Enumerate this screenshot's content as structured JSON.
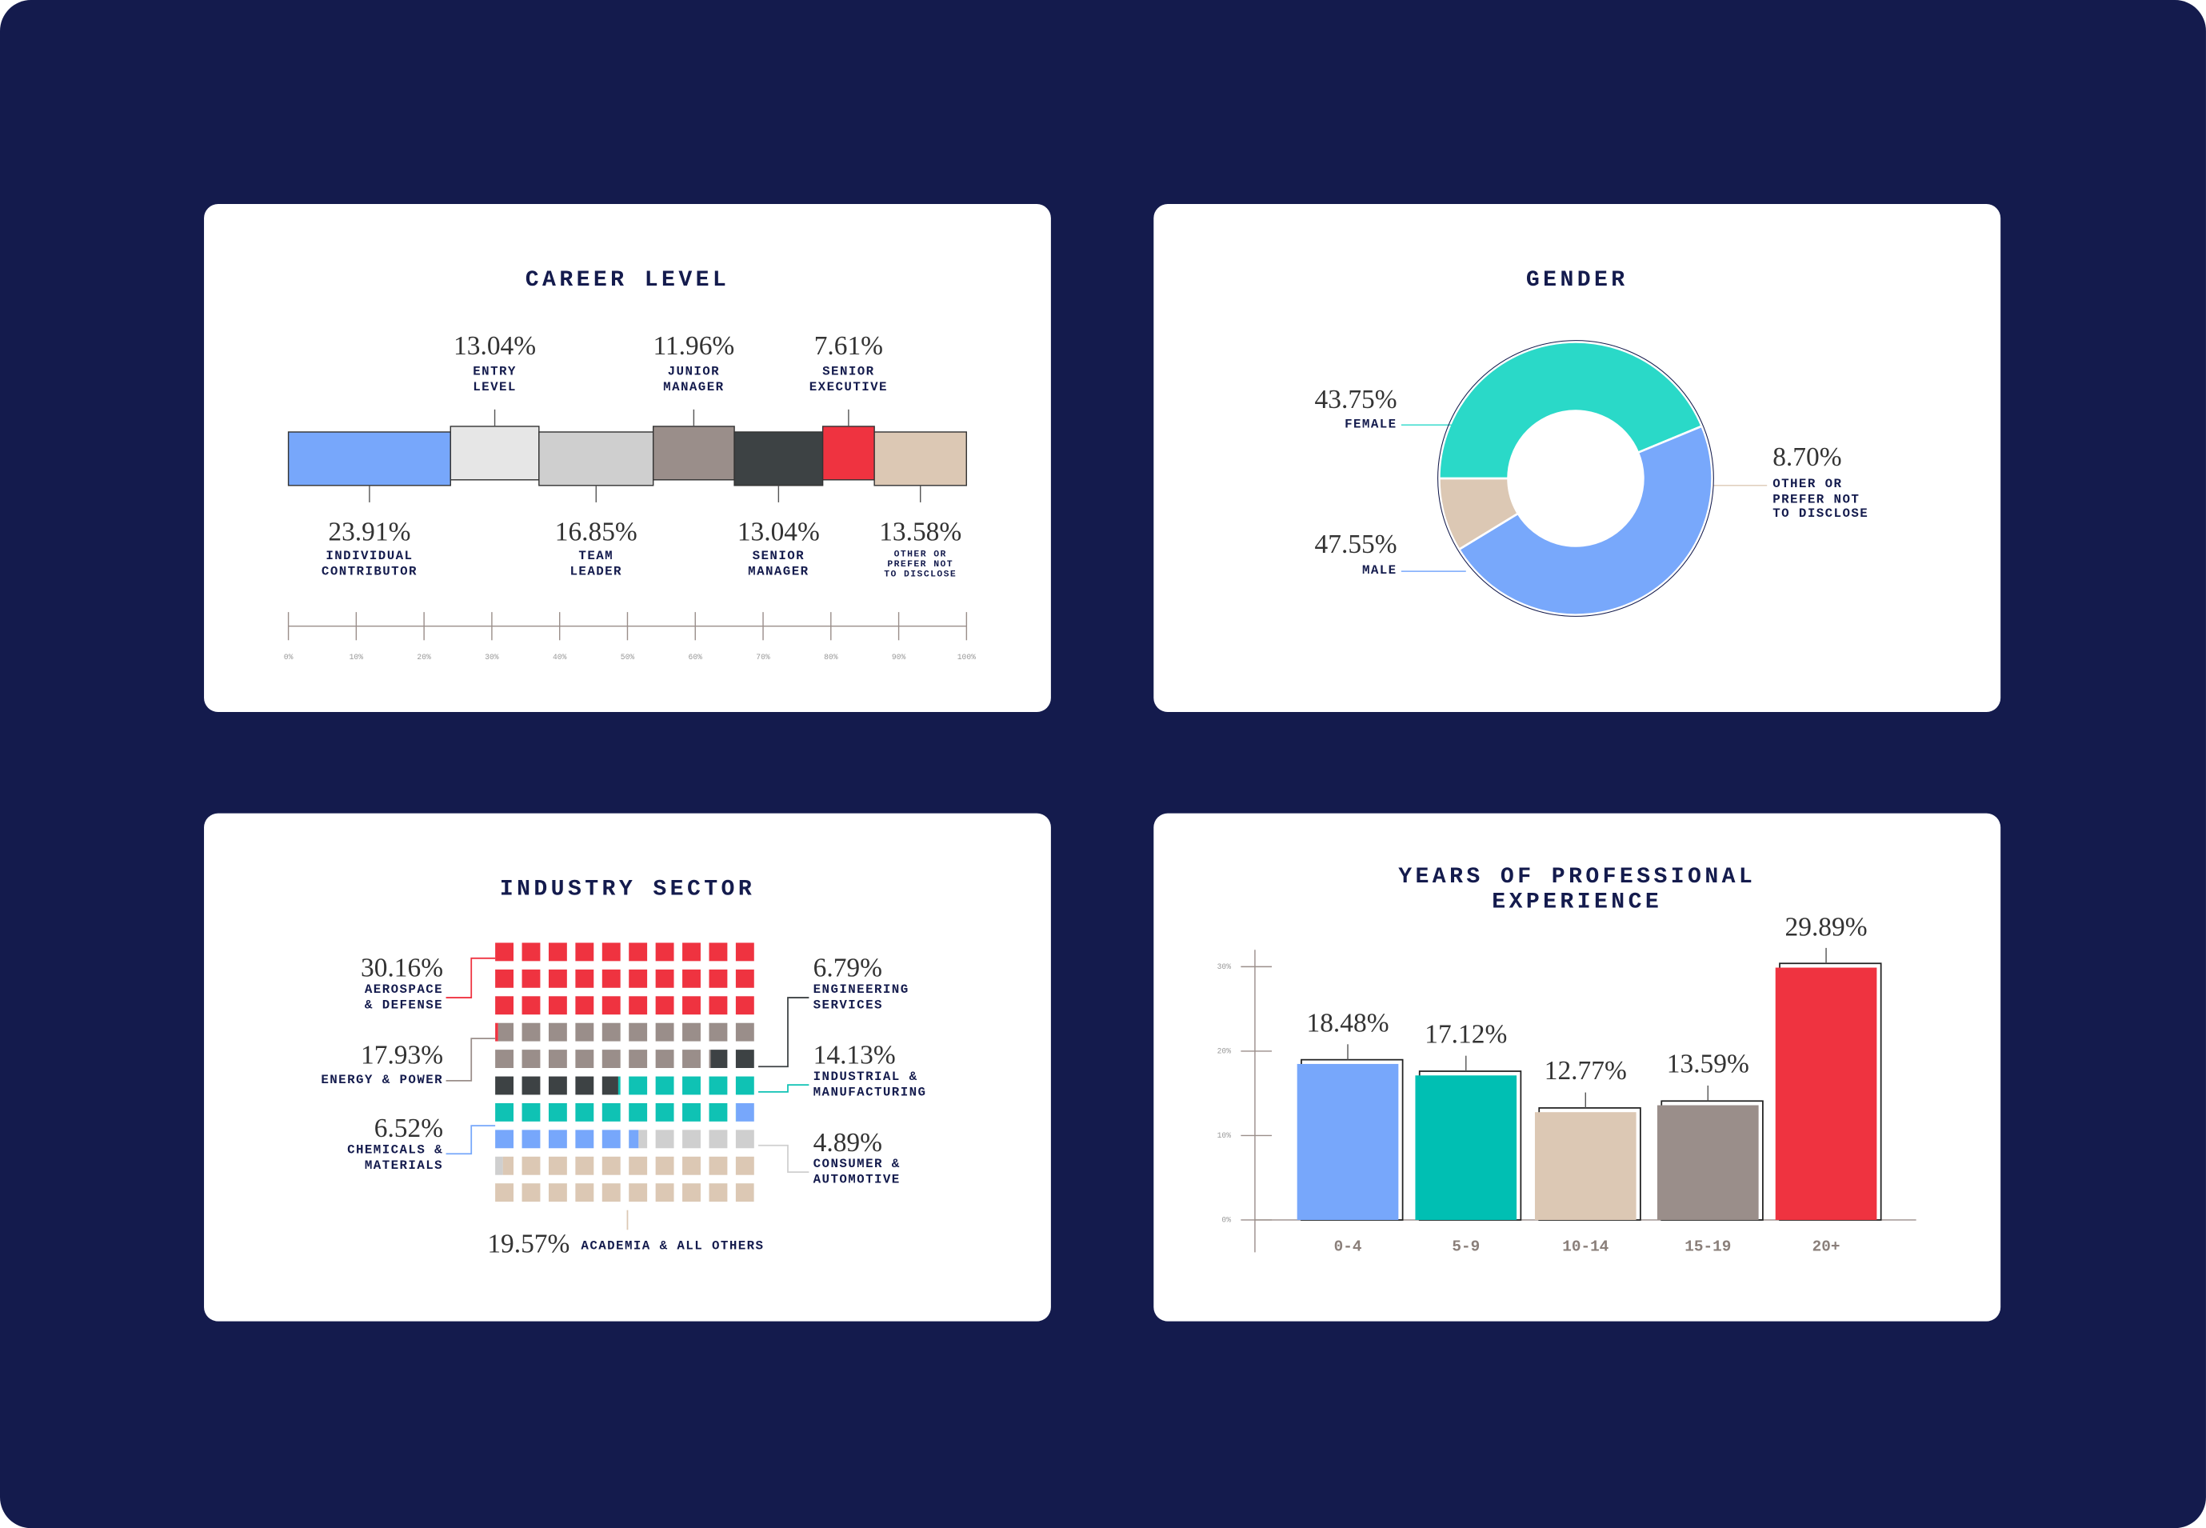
{
  "chart_data": [
    {
      "type": "stacked_bar",
      "title": "CAREER LEVEL",
      "categories": [
        "INDIVIDUAL\nCONTRIBUTOR",
        "ENTRY\nLEVEL",
        "TEAM\nLEADER",
        "JUNIOR\nMANAGER",
        "SENIOR\nMANAGER",
        "SENIOR\nEXECUTIVE",
        "OTHER OR\nPREFER NOT\nTO DISCLOSE"
      ],
      "values": [
        23.91,
        13.04,
        16.85,
        11.96,
        13.04,
        7.61,
        13.58
      ],
      "value_labels": [
        "23.91%",
        "13.04%",
        "16.85%",
        "11.96%",
        "13.04%",
        "7.61%",
        "13.58%"
      ],
      "colors": [
        "#77a7fb",
        "#e6e6e6",
        "#cfcfcf",
        "#9a8e8a",
        "#3d4244",
        "#ef3340",
        "#dcc8b4"
      ],
      "xlim": [
        0,
        100
      ],
      "xticks": [
        {
          "value": 0,
          "label": "0%"
        },
        {
          "value": 10,
          "label": "10%"
        },
        {
          "value": 20,
          "label": "20%"
        },
        {
          "value": 30,
          "label": "30%"
        },
        {
          "value": 40,
          "label": "40%"
        },
        {
          "value": 50,
          "label": "50%"
        },
        {
          "value": 60,
          "label": "60%"
        },
        {
          "value": 70,
          "label": "70%"
        },
        {
          "value": 80,
          "label": "80%"
        },
        {
          "value": 90,
          "label": "90%"
        },
        {
          "value": 100,
          "label": "100%"
        }
      ]
    },
    {
      "type": "donut",
      "title": "GENDER",
      "categories": [
        "FEMALE",
        "MALE",
        "OTHER OR\nPREFER NOT\nTO DISCLOSE"
      ],
      "values": [
        43.75,
        47.55,
        8.7
      ],
      "value_labels": [
        "43.75%",
        "47.55%",
        "8.70%"
      ],
      "colors": [
        "#2ad9c8",
        "#78a8fb",
        "#dcc8b4"
      ]
    },
    {
      "type": "waffle",
      "title": "INDUSTRY SECTOR",
      "categories": [
        "AEROSPACE\n& DEFENSE",
        "ENERGY & POWER",
        "ENGINEERING\nSERVICES",
        "INDUSTRIAL &\nMANUFACTURING",
        "CHEMICALS &\nMATERIALS",
        "CONSUMER &\nAUTOMOTIVE",
        "ACADEMIA & ALL OTHERS"
      ],
      "values": [
        30.16,
        17.93,
        6.79,
        14.13,
        6.52,
        4.89,
        19.57
      ],
      "value_labels": [
        "30.16%",
        "17.93%",
        "6.79%",
        "14.13%",
        "6.52%",
        "4.89%",
        "19.57%"
      ],
      "colors": [
        "#ef3340",
        "#9a8e8a",
        "#3d4244",
        "#0fc2b4",
        "#77a7fb",
        "#cfcfcf",
        "#dcc8b4"
      ]
    },
    {
      "type": "bar",
      "title": "YEARS OF PROFESSIONAL EXPERIENCE",
      "categories": [
        "0-4",
        "5-9",
        "10-14",
        "15-19",
        "20+"
      ],
      "values": [
        18.48,
        17.12,
        12.77,
        13.59,
        29.89
      ],
      "value_labels": [
        "18.48%",
        "17.12%",
        "12.77%",
        "13.59%",
        "29.89%"
      ],
      "colors": [
        "#77a7fb",
        "#00bfb3",
        "#dcc8b4",
        "#9a8e8a",
        "#ef3340"
      ],
      "ylim": [
        0,
        30
      ],
      "yticks": [
        {
          "value": 0,
          "label": "0%"
        },
        {
          "value": 10,
          "label": "10%"
        },
        {
          "value": 20,
          "label": "20%"
        },
        {
          "value": 30,
          "label": "30%"
        }
      ]
    }
  ]
}
